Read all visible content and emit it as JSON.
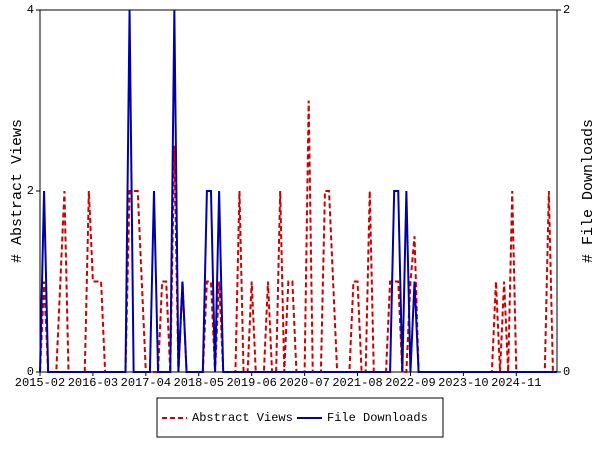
{
  "chart_data": {
    "type": "line",
    "y_label": "# Abstract Views",
    "y2_label": "# File Downloads",
    "categories": [
      "2015-02",
      null,
      null,
      null,
      null,
      null,
      null,
      null,
      null,
      null,
      null,
      null,
      null,
      "2016-03",
      null,
      null,
      null,
      null,
      null,
      null,
      null,
      null,
      null,
      null,
      null,
      null,
      "2017-04",
      null,
      null,
      null,
      null,
      null,
      null,
      null,
      null,
      null,
      null,
      null,
      null,
      "2018-05",
      null,
      null,
      null,
      null,
      null,
      null,
      null,
      null,
      null,
      null,
      null,
      null,
      "2019-06",
      null,
      null,
      null,
      null,
      null,
      null,
      null,
      null,
      null,
      null,
      null,
      null,
      "2020-07",
      null,
      null,
      null,
      null,
      null,
      null,
      null,
      null,
      null,
      null,
      null,
      null,
      "2021-08",
      null,
      null,
      null,
      null,
      null,
      null,
      null,
      null,
      null,
      null,
      null,
      null,
      "2022-09",
      null,
      null,
      null,
      null,
      null,
      null,
      null,
      null,
      null,
      null,
      null,
      null,
      "2023-10",
      null,
      null,
      null,
      null,
      null,
      null,
      null,
      null,
      null,
      null,
      null,
      null,
      "2024-11",
      null,
      null,
      null,
      null,
      null,
      null,
      null,
      null,
      null,
      null
    ],
    "series": [
      {
        "name": "Abstract Views",
        "color": "#cc0000",
        "dashed": true,
        "values": [
          0,
          1,
          0,
          0,
          0,
          1,
          2,
          0,
          0,
          0,
          0,
          0,
          2,
          1,
          1,
          1,
          0,
          0,
          0,
          0,
          0,
          0,
          2,
          2,
          2,
          1,
          0,
          0,
          0,
          0,
          1,
          1,
          0,
          2.5,
          0,
          1,
          0,
          0,
          0,
          0,
          0,
          1,
          1,
          0,
          1,
          0,
          0,
          0,
          0,
          2,
          0,
          0,
          1,
          0,
          0,
          0,
          1,
          0,
          0,
          2,
          0,
          1,
          1,
          0,
          0,
          0,
          3,
          0,
          0,
          0,
          2,
          2,
          1,
          0,
          0,
          0,
          0,
          1,
          1,
          0,
          0,
          2,
          0,
          0,
          0,
          0,
          1,
          1,
          1,
          0,
          0,
          1,
          1.5,
          0,
          0,
          0,
          0,
          0,
          0,
          0,
          0,
          0,
          0,
          0,
          0,
          0,
          0,
          0,
          0,
          0,
          0,
          0,
          1,
          0,
          1,
          0,
          2,
          0,
          0,
          0,
          0,
          0,
          0,
          0,
          0,
          2,
          0,
          0
        ]
      },
      {
        "name": "File Downloads",
        "color": "#0000aa",
        "dashed": false,
        "axis": "y2",
        "values": [
          0,
          1,
          0,
          0,
          0,
          0,
          0,
          0,
          0,
          0,
          0,
          0,
          0,
          0,
          0,
          0,
          0,
          0,
          0,
          0,
          0,
          0,
          2,
          0,
          0,
          0,
          0,
          0,
          1,
          0,
          0,
          0,
          0,
          2,
          0,
          0.5,
          0,
          0,
          0,
          0,
          0,
          1,
          1,
          0,
          1,
          0,
          0,
          0,
          0,
          0,
          0,
          0,
          0,
          0,
          0,
          0,
          0,
          0,
          0,
          0,
          0,
          0,
          0,
          0,
          0,
          0,
          0,
          0,
          0,
          0,
          0,
          0,
          0,
          0,
          0,
          0,
          0,
          0,
          0,
          0,
          0,
          0,
          0,
          0,
          0,
          0,
          0,
          1,
          1,
          0,
          1,
          0,
          0.5,
          0,
          0,
          0,
          0,
          0,
          0,
          0,
          0,
          0,
          0,
          0,
          0,
          0,
          0,
          0,
          0,
          0,
          0,
          0,
          0,
          0,
          0,
          0,
          0,
          0,
          0,
          0,
          0,
          0,
          0,
          0,
          0,
          0,
          0,
          0
        ]
      }
    ],
    "ylim": [
      0,
      4
    ],
    "yticks": [
      0,
      2,
      4
    ],
    "y2lim": [
      0,
      2
    ],
    "y2ticks": [
      0,
      2
    ]
  }
}
